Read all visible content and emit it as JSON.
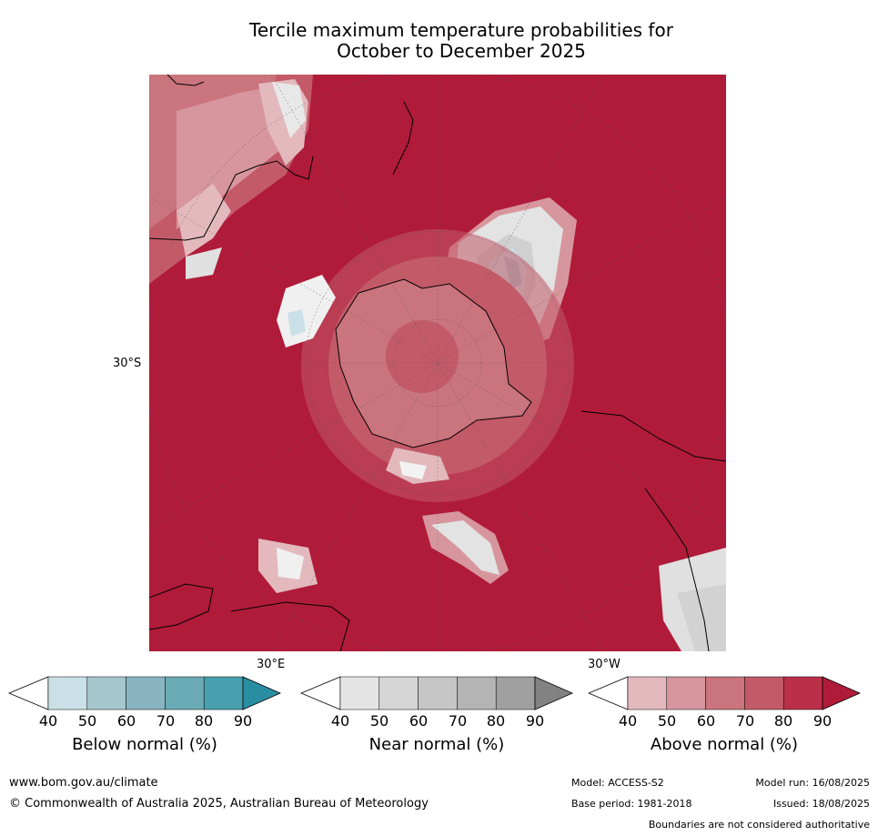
{
  "title_line1": "Tercile maximum temperature probabilities for",
  "title_line2": "October to December 2025",
  "map": {
    "lat_label": "30°S",
    "lon_label_east": "30°E",
    "lon_label_west": "30°W"
  },
  "colorbars": [
    {
      "label": "Below normal (%)",
      "ticks": [
        "40",
        "50",
        "60",
        "70",
        "80",
        "90"
      ],
      "colors": [
        "#ffffff",
        "#c9e0e6",
        "#a7c7ce",
        "#88b4bf",
        "#6aaab5",
        "#48a0ae",
        "#2a8ea2"
      ]
    },
    {
      "label": "Near normal (%)",
      "ticks": [
        "40",
        "50",
        "60",
        "70",
        "80",
        "90"
      ],
      "colors": [
        "#ffffff",
        "#e4e4e4",
        "#d6d6d6",
        "#c6c6c6",
        "#b4b4b4",
        "#a0a0a0",
        "#828282"
      ]
    },
    {
      "label": "Above normal (%)",
      "ticks": [
        "40",
        "50",
        "60",
        "70",
        "80",
        "90"
      ],
      "colors": [
        "#ffffff",
        "#e3b9bd",
        "#d7969d",
        "#ca747e",
        "#c35a68",
        "#bb3049",
        "#b01b3a"
      ]
    }
  ],
  "footer": {
    "website": "www.bom.gov.au/climate",
    "copyright": "© Commonwealth of Australia 2025, Australian Bureau of Meteorology",
    "model": "Model: ACCESS-S2",
    "base_period": "Base period: 1981-2018",
    "model_run": "Model run: 16/08/2025",
    "issued": "Issued: 18/08/2025",
    "disclaimer": "Boundaries are not considered authoritative"
  }
}
